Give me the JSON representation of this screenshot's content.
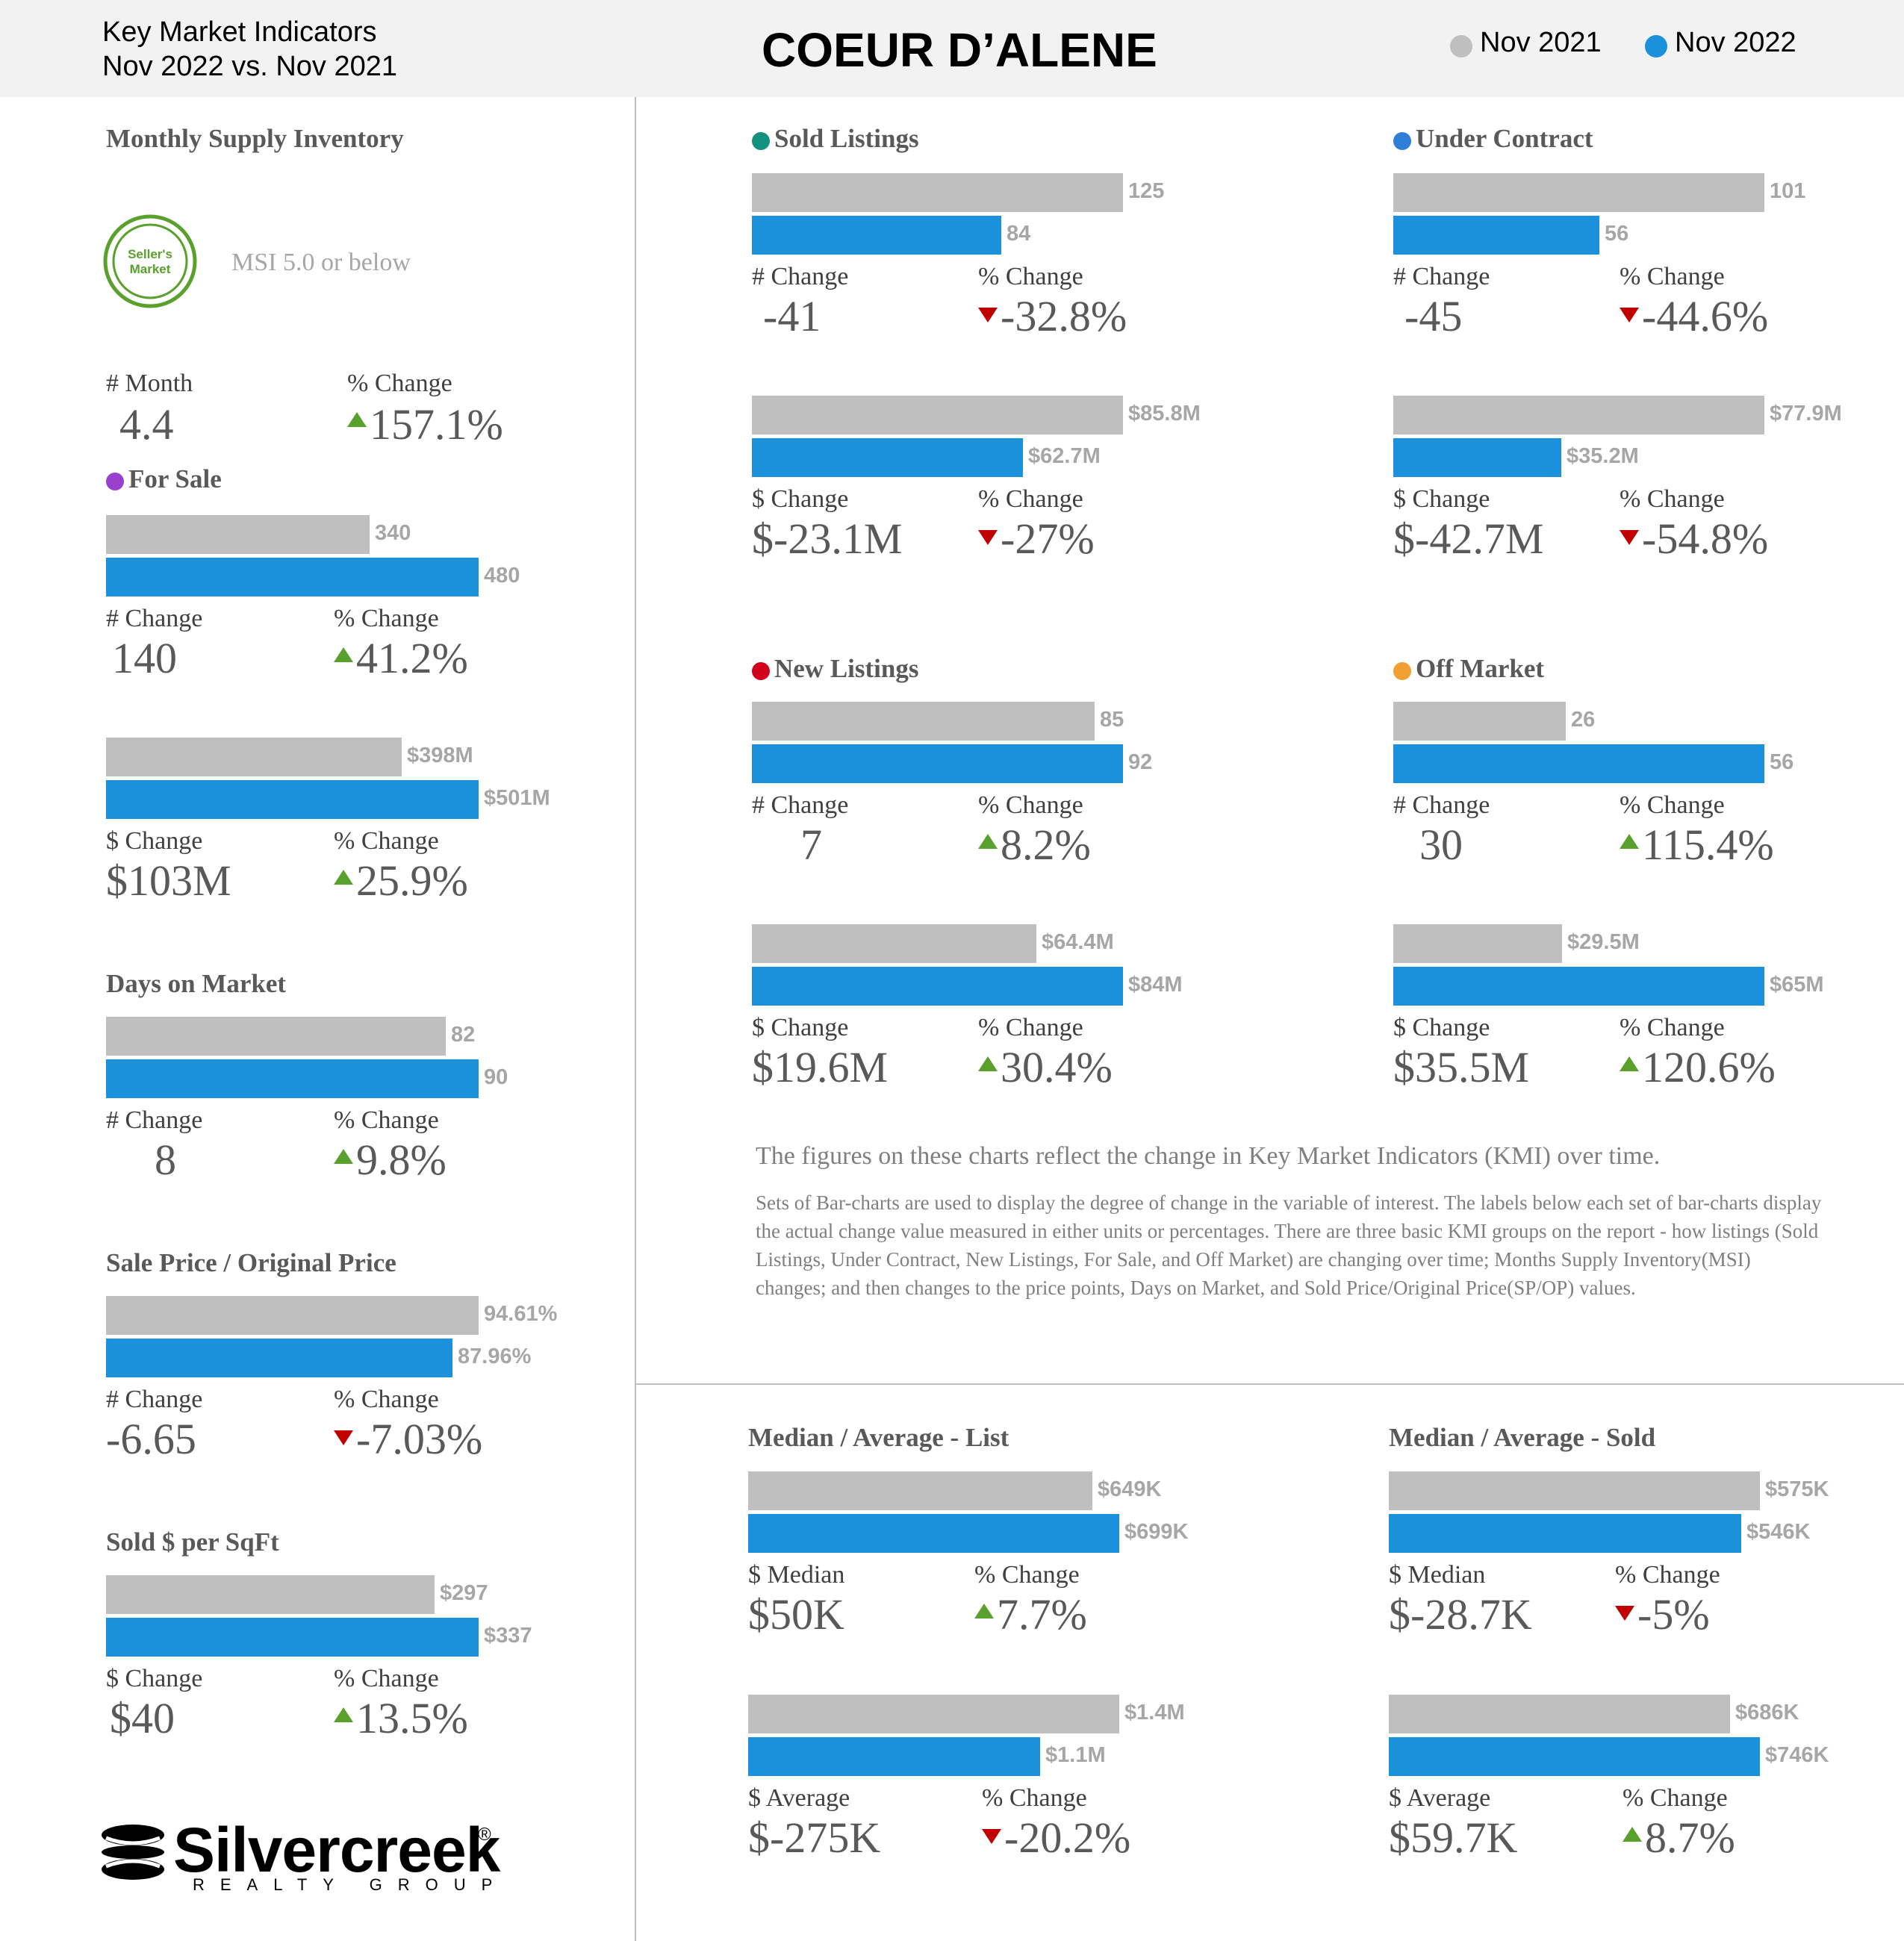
{
  "header": {
    "title_line1": "Key Market Indicators",
    "title_line2": "Nov 2022 vs. Nov 2021",
    "city": "COEUR D’ALENE",
    "legend": [
      {
        "label": "Nov 2021",
        "color": "#bfbfbf"
      },
      {
        "label": "Nov 2022",
        "color": "#1b91dc"
      }
    ]
  },
  "msi": {
    "title": "Monthly Supply Inventory",
    "badge_line1": "Seller's",
    "badge_line2": "Market",
    "badge_color": "#5aa02c",
    "description": "MSI 5.0 or below",
    "month_label": "# Month",
    "month_value": "4.4",
    "pct_label": "% Change",
    "pct_value": "157.1%",
    "pct_direction": "up"
  },
  "chart_data": [
    {
      "id": "for_sale_count",
      "type": "bar",
      "title": "For Sale",
      "marker_color": "#9b3fcf",
      "categories": [
        "Nov 2021",
        "Nov 2022"
      ],
      "values": [
        340,
        480
      ],
      "labels": [
        "340",
        "480"
      ],
      "change_label": "# Change",
      "change_value": "140",
      "pct_label": "% Change",
      "pct_value": "41.2%",
      "pct_direction": "up"
    },
    {
      "id": "for_sale_dollar",
      "type": "bar",
      "title": "",
      "categories": [
        "Nov 2021",
        "Nov 2022"
      ],
      "values": [
        398,
        501
      ],
      "labels": [
        "$398M",
        "$501M"
      ],
      "change_label": "$ Change",
      "change_value": "$103M",
      "pct_label": "% Change",
      "pct_value": "25.9%",
      "pct_direction": "up"
    },
    {
      "id": "days_on_market",
      "type": "bar",
      "title": "Days on Market",
      "categories": [
        "Nov 2021",
        "Nov 2022"
      ],
      "values": [
        82,
        90
      ],
      "labels": [
        "82",
        "90"
      ],
      "change_label": "# Change",
      "change_value": "8",
      "pct_label": "% Change",
      "pct_value": "9.8%",
      "pct_direction": "up"
    },
    {
      "id": "sp_op",
      "type": "bar",
      "title": "Sale Price / Original Price",
      "categories": [
        "Nov 2021",
        "Nov 2022"
      ],
      "values": [
        94.61,
        87.96
      ],
      "labels": [
        "94.61%",
        "87.96%"
      ],
      "change_label": "# Change",
      "change_value": "-6.65",
      "pct_label": "% Change",
      "pct_value": "-7.03%",
      "pct_direction": "down"
    },
    {
      "id": "sold_per_sqft",
      "type": "bar",
      "title": "Sold $ per SqFt",
      "categories": [
        "Nov 2021",
        "Nov 2022"
      ],
      "values": [
        297,
        337
      ],
      "labels": [
        "$297",
        "$337"
      ],
      "change_label": "$ Change",
      "change_value": "$40",
      "pct_label": "% Change",
      "pct_value": "13.5%",
      "pct_direction": "up"
    },
    {
      "id": "sold_count",
      "type": "bar",
      "title": "Sold Listings",
      "marker_color": "#13917f",
      "categories": [
        "Nov 2021",
        "Nov 2022"
      ],
      "values": [
        125,
        84
      ],
      "labels": [
        "125",
        "84"
      ],
      "change_label": "# Change",
      "change_value": "-41",
      "pct_label": "% Change",
      "pct_value": "-32.8%",
      "pct_direction": "down"
    },
    {
      "id": "sold_dollar",
      "type": "bar",
      "title": "",
      "categories": [
        "Nov 2021",
        "Nov 2022"
      ],
      "values": [
        85.8,
        62.7
      ],
      "labels": [
        "$85.8M",
        "$62.7M"
      ],
      "change_label": "$ Change",
      "change_value": "$-23.1M",
      "pct_label": "% Change",
      "pct_value": "-27%",
      "pct_direction": "down"
    },
    {
      "id": "uc_count",
      "type": "bar",
      "title": "Under Contract",
      "marker_color": "#2f7ed8",
      "categories": [
        "Nov 2021",
        "Nov 2022"
      ],
      "values": [
        101,
        56
      ],
      "labels": [
        "101",
        "56"
      ],
      "change_label": "# Change",
      "change_value": "-45",
      "pct_label": "% Change",
      "pct_value": "-44.6%",
      "pct_direction": "down"
    },
    {
      "id": "uc_dollar",
      "type": "bar",
      "title": "",
      "categories": [
        "Nov 2021",
        "Nov 2022"
      ],
      "values": [
        77.9,
        35.2
      ],
      "labels": [
        "$77.9M",
        "$35.2M"
      ],
      "change_label": "$ Change",
      "change_value": "$-42.7M",
      "pct_label": "% Change",
      "pct_value": "-54.8%",
      "pct_direction": "down"
    },
    {
      "id": "new_count",
      "type": "bar",
      "title": "New Listings",
      "marker_color": "#d0021b",
      "categories": [
        "Nov 2021",
        "Nov 2022"
      ],
      "values": [
        85,
        92
      ],
      "labels": [
        "85",
        "92"
      ],
      "change_label": "# Change",
      "change_value": "7",
      "pct_label": "% Change",
      "pct_value": "8.2%",
      "pct_direction": "up"
    },
    {
      "id": "new_dollar",
      "type": "bar",
      "title": "",
      "categories": [
        "Nov 2021",
        "Nov 2022"
      ],
      "values": [
        64.4,
        84
      ],
      "labels": [
        "$64.4M",
        "$84M"
      ],
      "change_label": "$ Change",
      "change_value": "$19.6M",
      "pct_label": "% Change",
      "pct_value": "30.4%",
      "pct_direction": "up"
    },
    {
      "id": "off_count",
      "type": "bar",
      "title": "Off Market",
      "marker_color": "#f0a030",
      "categories": [
        "Nov 2021",
        "Nov 2022"
      ],
      "values": [
        26,
        56
      ],
      "labels": [
        "26",
        "56"
      ],
      "change_label": "# Change",
      "change_value": "30",
      "pct_label": "% Change",
      "pct_value": "115.4%",
      "pct_direction": "up"
    },
    {
      "id": "off_dollar",
      "type": "bar",
      "title": "",
      "categories": [
        "Nov 2021",
        "Nov 2022"
      ],
      "values": [
        29.5,
        65
      ],
      "labels": [
        "$29.5M",
        "$65M"
      ],
      "change_label": "$ Change",
      "change_value": "$35.5M",
      "pct_label": "% Change",
      "pct_value": "120.6%",
      "pct_direction": "up"
    },
    {
      "id": "list_median",
      "type": "bar",
      "title": "Median / Average - List",
      "categories": [
        "Nov 2021",
        "Nov 2022"
      ],
      "values": [
        649,
        699
      ],
      "labels": [
        "$649K",
        "$699K"
      ],
      "change_label": "$ Median",
      "change_value": "$50K",
      "pct_label": "% Change",
      "pct_value": "7.7%",
      "pct_direction": "up"
    },
    {
      "id": "list_average",
      "type": "bar",
      "title": "",
      "categories": [
        "Nov 2021",
        "Nov 2022"
      ],
      "values": [
        1.4,
        1.1
      ],
      "labels": [
        "$1.4M",
        "$1.1M"
      ],
      "change_label": "$ Average",
      "change_value": "$-275K",
      "pct_label": "% Change",
      "pct_value": "-20.2%",
      "pct_direction": "down"
    },
    {
      "id": "sold_median",
      "type": "bar",
      "title": "Median / Average - Sold",
      "categories": [
        "Nov 2021",
        "Nov 2022"
      ],
      "values": [
        575,
        546
      ],
      "labels": [
        "$575K",
        "$546K"
      ],
      "change_label": "$ Median",
      "change_value": "$-28.7K",
      "pct_label": "% Change",
      "pct_value": "-5%",
      "pct_direction": "down"
    },
    {
      "id": "sold_average",
      "type": "bar",
      "title": "",
      "categories": [
        "Nov 2021",
        "Nov 2022"
      ],
      "values": [
        686,
        746
      ],
      "labels": [
        "$686K",
        "$746K"
      ],
      "change_label": "$ Average",
      "change_value": "$59.7K",
      "pct_label": "% Change",
      "pct_value": "8.7%",
      "pct_direction": "up"
    }
  ],
  "description": {
    "lead": "The figures on these charts reflect the change in Key Market Indicators (KMI) over time.",
    "body": "Sets of Bar-charts are used to display the degree of change in the variable of interest. The labels below each set of bar-charts display the actual change value measured in either units or percentages. There are three basic KMI groups on the report - how listings (Sold Listings, Under Contract, New Listings, For Sale, and Off Market) are changing over time; Months Supply Inventory(MSI) changes; and then changes to the price points, Days on Market, and Sold Price/Original Price(SP/OP) values."
  },
  "brand": {
    "name": "Silvercreek",
    "registered": "®",
    "tagline": "REALTY GROUP"
  }
}
